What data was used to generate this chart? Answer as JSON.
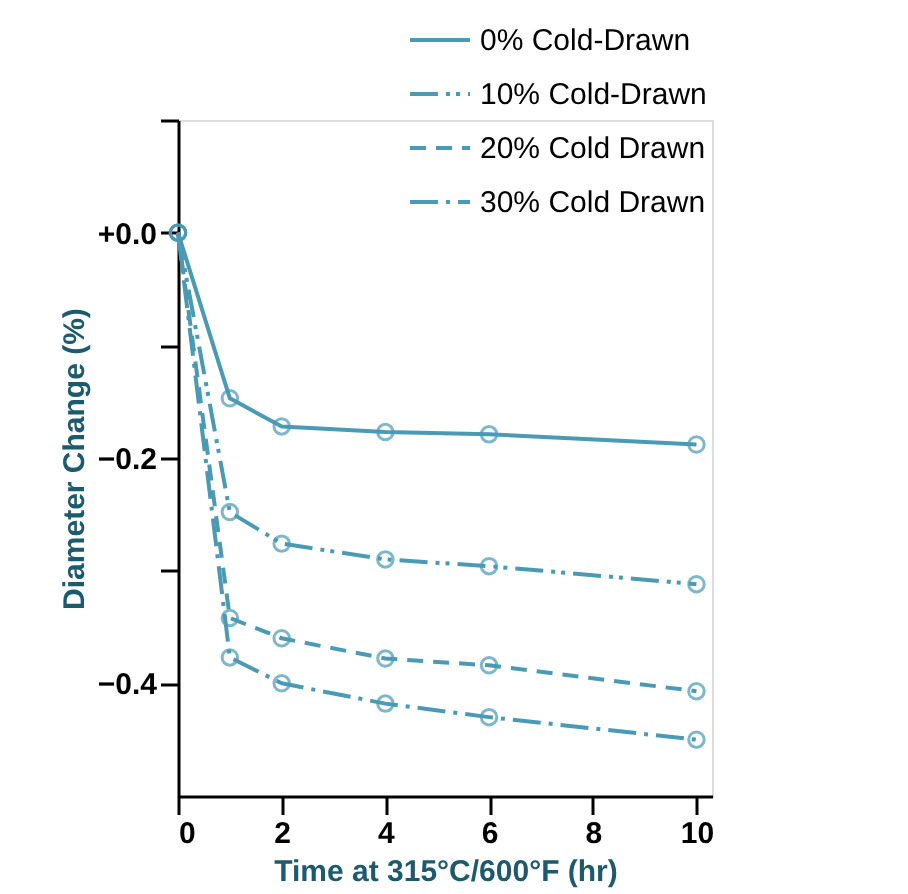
{
  "chart_data": {
    "type": "line",
    "xlabel": "Time at 315°C/600°F (hr)",
    "ylabel": "Diameter Change (%)",
    "x": [
      0,
      1,
      2,
      4,
      6,
      10
    ],
    "series": [
      {
        "name": "0% Cold-Drawn",
        "color": "#4a9ab5",
        "line_style": "solid",
        "values": [
          0,
          -0.147,
          -0.172,
          -0.177,
          -0.179,
          -0.188
        ]
      },
      {
        "name": "10% Cold-Drawn",
        "color": "#4a9ab5",
        "line_style": "dashdotdot",
        "values": [
          0,
          -0.248,
          -0.276,
          -0.29,
          -0.296,
          -0.312
        ]
      },
      {
        "name": "20% Cold Drawn",
        "color": "#4a9ab5",
        "line_style": "dashed",
        "values": [
          0,
          -0.342,
          -0.36,
          -0.378,
          -0.384,
          -0.407
        ]
      },
      {
        "name": "30% Cold Drawn",
        "color": "#4a9ab5",
        "line_style": "dashdot",
        "values": [
          0,
          -0.377,
          -0.4,
          -0.418,
          -0.43,
          -0.45
        ]
      }
    ],
    "xlim": [
      0,
      10.3
    ],
    "xticks": [
      0,
      2,
      4,
      6,
      8,
      10
    ],
    "ylim": [
      -0.5,
      0.1
    ],
    "yticks": [
      {
        "value": 0.1,
        "label": null
      },
      {
        "value": 0,
        "label": "+0.0"
      },
      {
        "value": -0.1,
        "label": null
      },
      {
        "value": -0.2,
        "label": "−0.2"
      },
      {
        "value": -0.3,
        "label": null
      },
      {
        "value": -0.4,
        "label": "−0.4"
      }
    ],
    "marker": "circle",
    "grid": false,
    "legend": "top right"
  }
}
